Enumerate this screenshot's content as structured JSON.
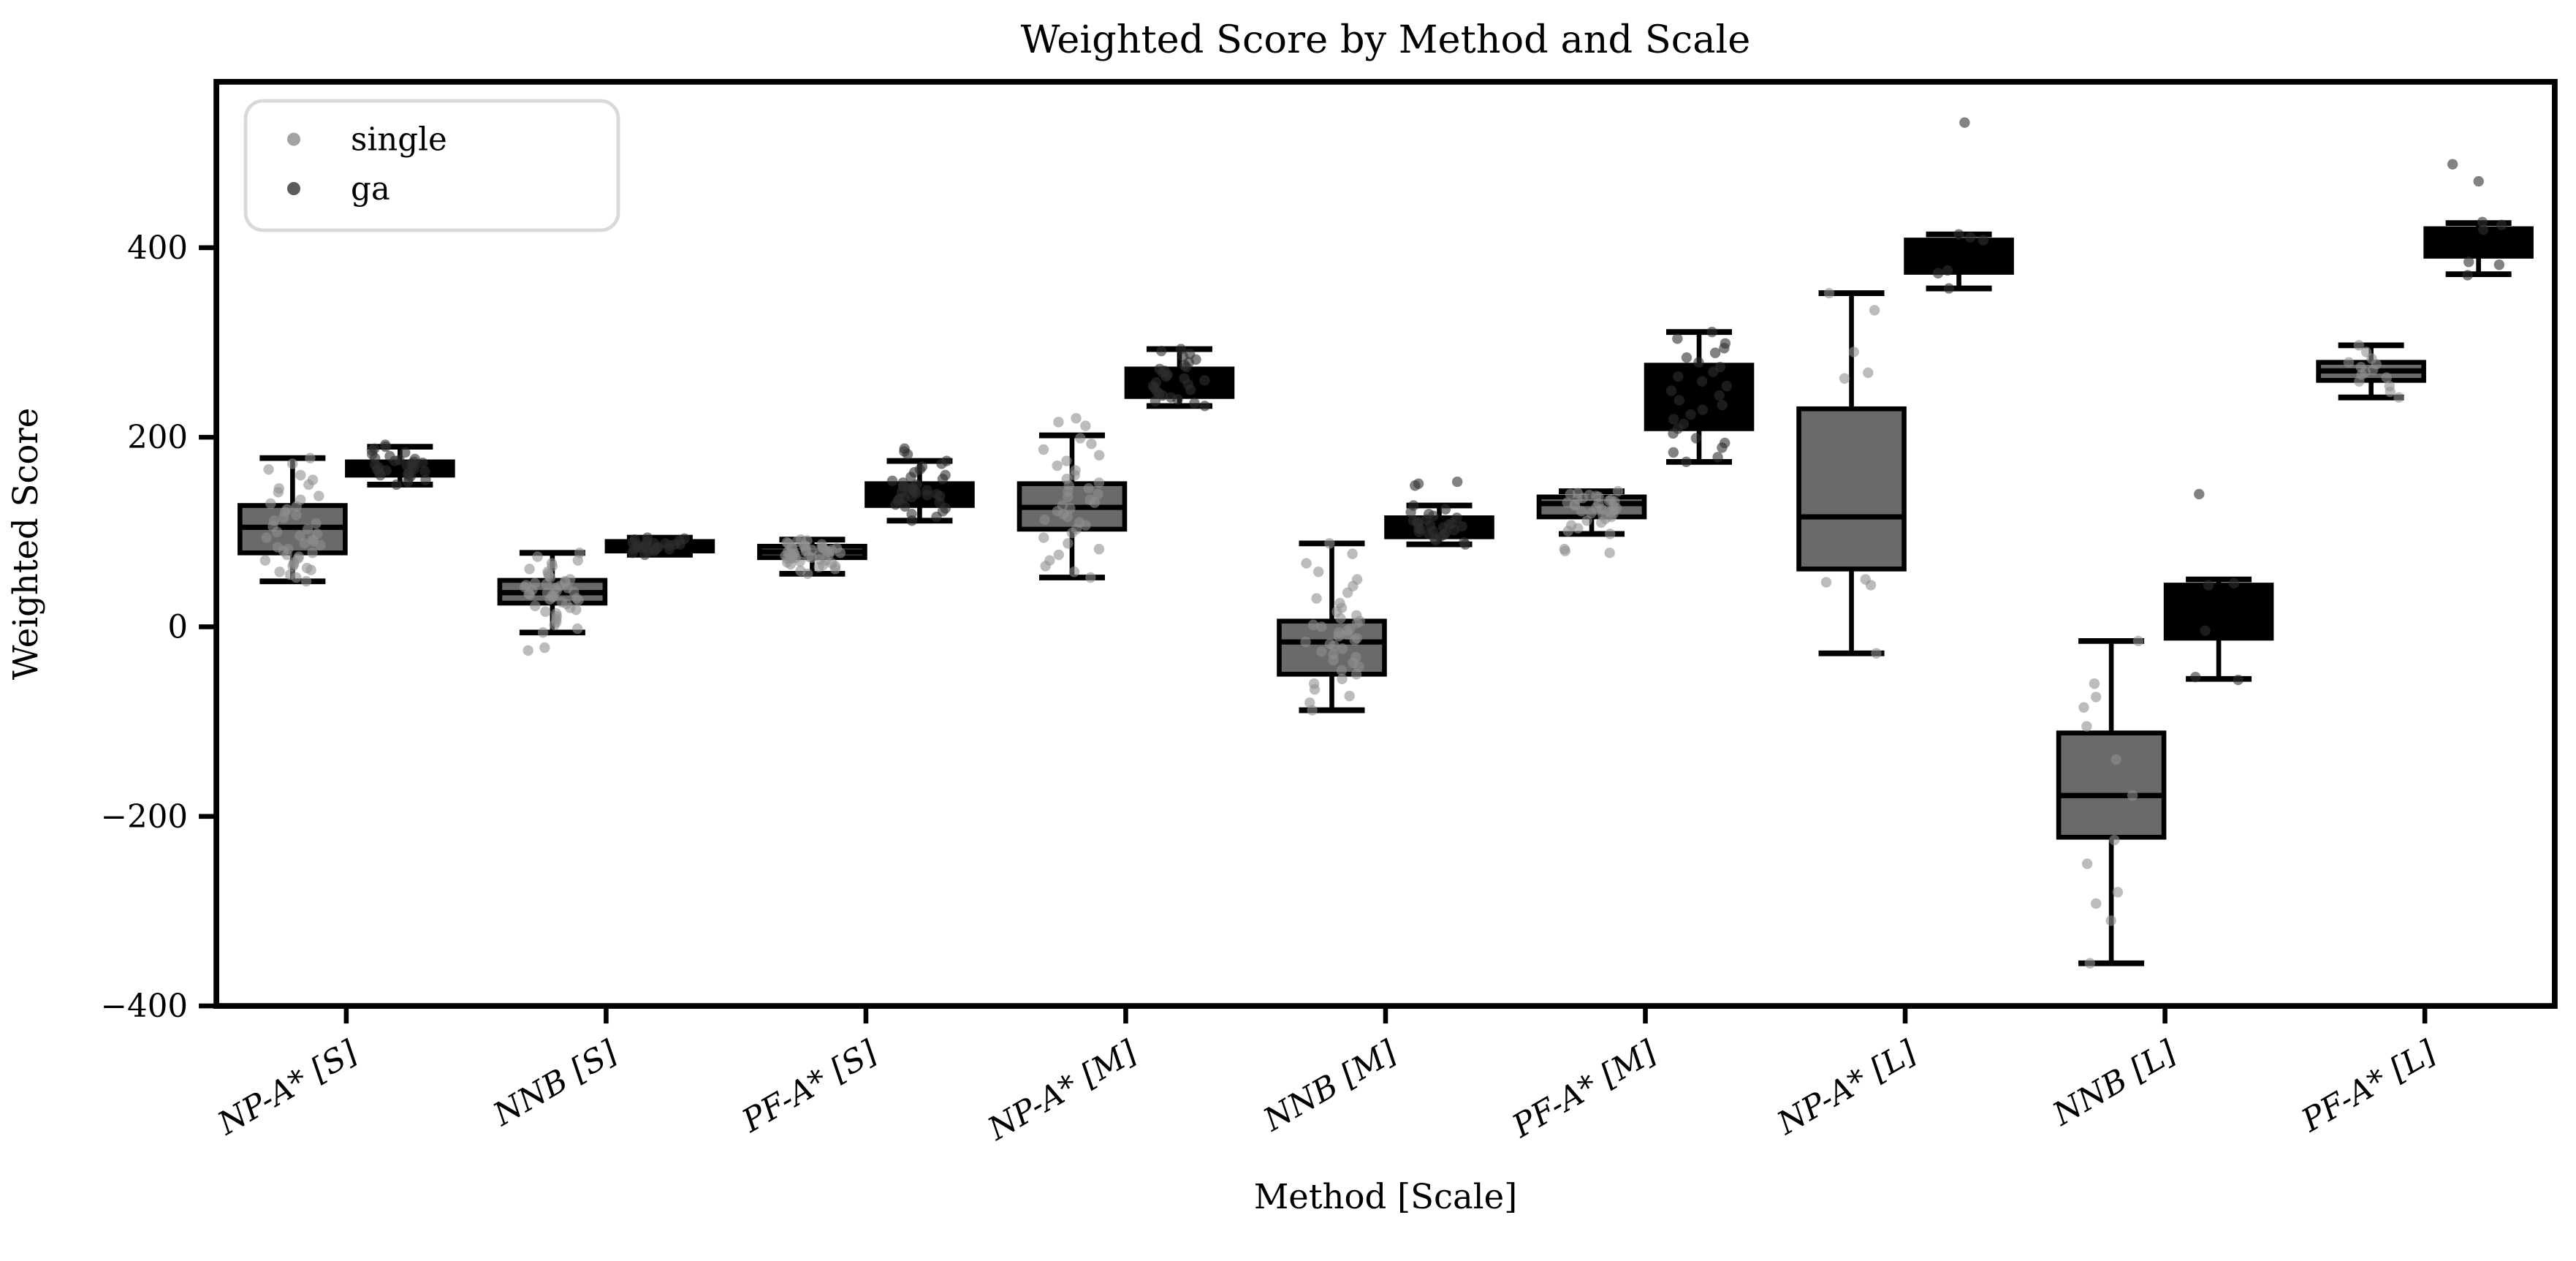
{
  "title": "Weighted Score by Method and Scale",
  "x_axis": {
    "label": "Method [Scale]"
  },
  "y_axis": {
    "label": "Weighted Score",
    "ticks": [
      {
        "v": -400,
        "label": "−400"
      },
      {
        "v": -200,
        "label": "−200"
      },
      {
        "v": 0,
        "label": "0"
      },
      {
        "v": 200,
        "label": "200"
      },
      {
        "v": 400,
        "label": "400"
      }
    ]
  },
  "legend": {
    "items": [
      {
        "label": "single",
        "dot_color": "#a3a3a3"
      },
      {
        "label": "ga",
        "dot_color": "#5c5c5c"
      }
    ]
  },
  "colors": {
    "single_box": "#6a6a6a",
    "single_point": "#909090",
    "ga_box": "#000000",
    "ga_point": "#2e2e2e",
    "edge": "#000000",
    "legend_border": "#d9d9d9"
  },
  "chart_data": {
    "type": "box",
    "title": "Weighted Score by Method and Scale",
    "xlabel": "Method [Scale]",
    "ylabel": "Weighted Score",
    "ylim": [
      -400,
      575
    ],
    "grid": false,
    "legend_position": "upper left",
    "categories": [
      "NP-A* [S]",
      "NNB [S]",
      "PF-A* [S]",
      "NP-A* [M]",
      "NNB [M]",
      "PF-A* [M]",
      "NP-A* [L]",
      "NNB [L]",
      "PF-A* [L]"
    ],
    "series": [
      {
        "name": "single",
        "box_color": "#6a6a6a",
        "point_color": "#909090",
        "boxes": [
          {
            "whisker_low": 48,
            "q1": 78,
            "median": 105,
            "q3": 128,
            "whisker_high": 178,
            "points": [
              48,
              52,
              55,
              58,
              60,
              62,
              64,
              66,
              68,
              70,
              72,
              74,
              76,
              78,
              80,
              82,
              84,
              86,
              88,
              90,
              92,
              94,
              96,
              98,
              100,
              103,
              106,
              109,
              112,
              115,
              118,
              121,
              124,
              127,
              130,
              134,
              138,
              142,
              146,
              150,
              155,
              160,
              166,
              172,
              178
            ]
          },
          {
            "whisker_low": -6,
            "q1": 25,
            "median": 36,
            "q3": 49,
            "whisker_high": 78,
            "points": [
              -25,
              -22,
              -6,
              -2,
              2,
              5,
              8,
              11,
              14,
              16,
              18,
              20,
              22,
              24,
              26,
              28,
              29,
              30,
              31,
              32,
              33,
              34,
              35,
              36,
              37,
              38,
              39,
              40,
              41,
              42,
              43,
              44,
              45,
              46,
              47,
              48,
              50,
              52,
              54,
              56,
              58,
              61,
              64,
              67,
              70,
              74,
              78
            ]
          },
          {
            "whisker_low": 56,
            "q1": 73,
            "median": 79,
            "q3": 85,
            "whisker_high": 92,
            "points": [
              56,
              59,
              61,
              63,
              64,
              65,
              66,
              67,
              68,
              69,
              70,
              71,
              72,
              72,
              73,
              73,
              74,
              74,
              75,
              75,
              76,
              76,
              77,
              77,
              78,
              78,
              79,
              79,
              80,
              80,
              81,
              81,
              82,
              82,
              83,
              83,
              84,
              84,
              85,
              86,
              87,
              88,
              89,
              90,
              91,
              92
            ]
          },
          {
            "whisker_low": 52,
            "q1": 103,
            "median": 126,
            "q3": 151,
            "whisker_high": 202,
            "points": [
              52,
              58,
              64,
              70,
              76,
              82,
              88,
              94,
              99,
              103,
              107,
              110,
              113,
              116,
              119,
              122,
              125,
              128,
              131,
              134,
              137,
              140,
              143,
              146,
              149,
              152,
              156,
              160,
              165,
              170,
              175,
              181,
              187,
              193,
              199,
              212,
              216,
              220
            ]
          },
          {
            "whisker_low": -88,
            "q1": -50,
            "median": -16,
            "q3": 6,
            "whisker_high": 88,
            "points": [
              -88,
              -80,
              -73,
              -66,
              -60,
              -55,
              -50,
              -46,
              -42,
              -38,
              -35,
              -32,
              -29,
              -26,
              -23,
              -20,
              -18,
              -16,
              -14,
              -12,
              -10,
              -8,
              -6,
              -4,
              -2,
              0,
              2,
              4,
              6,
              9,
              12,
              16,
              20,
              25,
              30,
              36,
              43,
              50,
              58,
              67,
              77,
              88
            ]
          },
          {
            "whisker_low": 98,
            "q1": 116,
            "median": 130,
            "q3": 137,
            "whisker_high": 143,
            "points": [
              78,
              80,
              82,
              98,
              101,
              104,
              107,
              110,
              112,
              114,
              116,
              118,
              119,
              120,
              121,
              122,
              123,
              124,
              125,
              126,
              127,
              128,
              129,
              130,
              131,
              132,
              133,
              134,
              135,
              136,
              137,
              138,
              139,
              140,
              141,
              143
            ]
          },
          {
            "whisker_low": -28,
            "q1": 61,
            "median": 116,
            "q3": 230,
            "whisker_high": 352,
            "points": [
              352,
              334,
              290,
              268,
              262,
              50,
              47,
              44,
              -28
            ]
          },
          {
            "whisker_low": -355,
            "q1": -222,
            "median": -178,
            "q3": -112,
            "whisker_high": -15,
            "points": [
              -15,
              -60,
              -74,
              -85,
              -105,
              -140,
              -178,
              -225,
              -250,
              -280,
              -292,
              -310,
              -355
            ]
          },
          {
            "whisker_low": 242,
            "q1": 260,
            "median": 270,
            "q3": 279,
            "whisker_high": 297,
            "points": [
              297,
              290,
              283,
              279,
              277,
              274,
              271,
              269,
              266,
              263,
              259,
              254,
              248,
              242
            ]
          }
        ]
      },
      {
        "name": "ga",
        "box_color": "#000000",
        "point_color": "#2e2e2e",
        "boxes": [
          {
            "whisker_low": 150,
            "q1": 160,
            "median": 167,
            "q3": 174,
            "whisker_high": 190,
            "points": [
              150,
              153,
              155,
              157,
              159,
              160,
              161,
              162,
              163,
              164,
              165,
              166,
              167,
              168,
              169,
              170,
              171,
              172,
              173,
              174,
              175,
              176,
              177,
              178,
              180,
              182,
              184,
              186,
              188,
              190,
              192
            ]
          },
          {
            "whisker_low": 76,
            "q1": 80,
            "median": 85,
            "q3": 90,
            "whisker_high": 94,
            "points": [
              76,
              78,
              79,
              80,
              81,
              82,
              82,
              83,
              83,
              84,
              84,
              85,
              85,
              86,
              86,
              87,
              87,
              88,
              88,
              89,
              90,
              91,
              92,
              93,
              94
            ]
          },
          {
            "whisker_low": 112,
            "q1": 128,
            "median": 140,
            "q3": 151,
            "whisker_high": 175,
            "points": [
              112,
              116,
              119,
              122,
              125,
              127,
              129,
              131,
              133,
              135,
              136,
              137,
              138,
              139,
              140,
              141,
              142,
              143,
              144,
              145,
              146,
              147,
              148,
              150,
              152,
              154,
              156,
              158,
              160,
              163,
              166,
              169,
              172,
              175,
              182,
              185,
              188
            ]
          },
          {
            "whisker_low": 233,
            "q1": 243,
            "median": 257,
            "q3": 272,
            "whisker_high": 293,
            "points": [
              233,
              236,
              238,
              240,
              242,
              244,
              246,
              248,
              250,
              252,
              254,
              256,
              258,
              260,
              262,
              264,
              266,
              268,
              270,
              272,
              274,
              276,
              279,
              282,
              285,
              288,
              291,
              293
            ]
          },
          {
            "whisker_low": 87,
            "q1": 95,
            "median": 105,
            "q3": 115,
            "whisker_high": 128,
            "points": [
              87,
              89,
              91,
              93,
              95,
              97,
              98,
              99,
              100,
              101,
              102,
              103,
              104,
              105,
              106,
              107,
              108,
              109,
              110,
              111,
              112,
              113,
              115,
              117,
              119,
              121,
              124,
              128,
              149,
              151,
              153
            ]
          },
          {
            "whisker_low": 174,
            "q1": 209,
            "median": 240,
            "q3": 276,
            "whisker_high": 311,
            "points": [
              174,
              179,
              184,
              189,
              194,
              199,
              204,
              209,
              214,
              219,
              224,
              229,
              234,
              239,
              244,
              249,
              254,
              259,
              264,
              269,
              274,
              279,
              284,
              289,
              294,
              299,
              304,
              311
            ]
          },
          {
            "whisker_low": 357,
            "q1": 374,
            "median": 391,
            "q3": 408,
            "whisker_high": 414,
            "points": [
              532,
              414,
              411,
              408,
              376,
              373,
              357
            ]
          },
          {
            "whisker_low": -55,
            "q1": -12,
            "median": 22,
            "q3": 44,
            "whisker_high": 50,
            "points": [
              140,
              46,
              44,
              -4,
              -53,
              -56
            ]
          },
          {
            "whisker_low": 372,
            "q1": 391,
            "median": 405,
            "q3": 420,
            "whisker_high": 426,
            "points": [
              488,
              470,
              427,
              424,
              419,
              385,
              382,
              371
            ]
          }
        ]
      }
    ]
  }
}
